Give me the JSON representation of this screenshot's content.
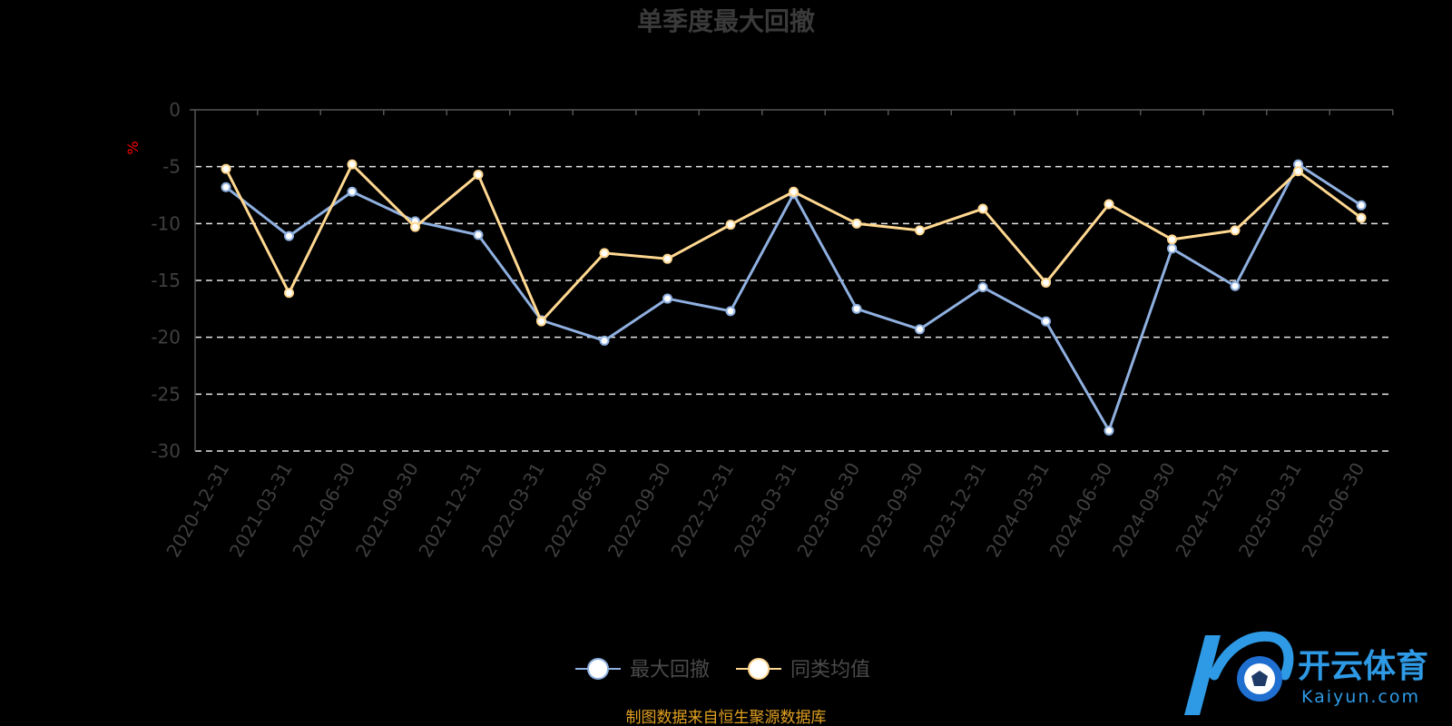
{
  "chart_data": {
    "type": "line",
    "title": "单季度最大回撤",
    "ylabel": "%",
    "ylim": [
      -30,
      0
    ],
    "yticks": [
      0,
      -5,
      -10,
      -15,
      -20,
      -25,
      -30
    ],
    "grid": "dashed horizontal",
    "legend_position": "bottom-center",
    "categories": [
      "2020-12-31",
      "2021-03-31",
      "2021-06-30",
      "2021-09-30",
      "2021-12-31",
      "2022-03-31",
      "2022-06-30",
      "2022-09-30",
      "2022-12-31",
      "2023-03-31",
      "2023-06-30",
      "2023-09-30",
      "2023-12-31",
      "2024-03-31",
      "2024-06-30",
      "2024-09-30",
      "2024-12-31",
      "2025-03-31",
      "2025-06-30"
    ],
    "series": [
      {
        "name": "最大回撤",
        "color": "#8fb0e0",
        "values": [
          -6.8,
          -11.1,
          -7.2,
          -9.8,
          -11.0,
          -18.5,
          -20.3,
          -16.6,
          -17.7,
          -7.4,
          -17.5,
          -19.3,
          -15.6,
          -18.6,
          -28.2,
          -12.2,
          -15.5,
          -4.8,
          -8.4
        ]
      },
      {
        "name": "同类均值",
        "color": "#ffd891",
        "values": [
          -5.2,
          -16.1,
          -4.8,
          -10.3,
          -5.7,
          -18.6,
          -12.6,
          -13.1,
          -10.1,
          -7.2,
          -10.0,
          -10.6,
          -8.7,
          -15.2,
          -8.3,
          -11.4,
          -10.6,
          -5.4,
          -9.5
        ]
      }
    ]
  },
  "footer": {
    "source": "制图数据来自恒生聚源数据库"
  },
  "logo": {
    "name": "开云体育",
    "url_text": "Kaiyun.com",
    "color": "#2e9ae6"
  }
}
